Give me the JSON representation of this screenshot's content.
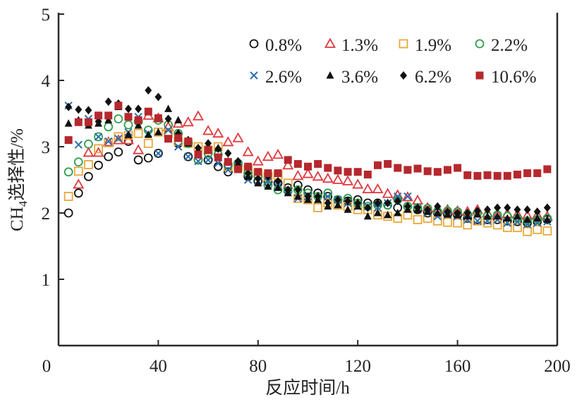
{
  "chart_data": {
    "type": "scatter",
    "xlabel": "反应时间/h",
    "ylabel_main": "CH",
    "ylabel_sub": "4",
    "ylabel_rest": "选择性/%",
    "xlim": [
      0,
      200
    ],
    "ylim": [
      0,
      5
    ],
    "xticks": [
      0,
      40,
      80,
      120,
      160,
      200
    ],
    "yticks": [
      1,
      2,
      3,
      4,
      5
    ],
    "x_tick_labels": [
      "0",
      "40",
      "80",
      "120",
      "160",
      "200"
    ],
    "y_tick_labels": [
      "1",
      "2",
      "3",
      "4",
      "5"
    ],
    "legend_placement": "top-right",
    "grid": false,
    "x": [
      4,
      8,
      12,
      16,
      20,
      24,
      28,
      32,
      36,
      40,
      44,
      48,
      52,
      56,
      60,
      64,
      68,
      72,
      76,
      80,
      84,
      88,
      92,
      96,
      100,
      104,
      108,
      112,
      116,
      120,
      124,
      128,
      132,
      136,
      140,
      144,
      148,
      152,
      156,
      160,
      164,
      168,
      172,
      176,
      180,
      184,
      188,
      192,
      196
    ],
    "series": [
      {
        "name": "0.8%",
        "marker": "circle-open",
        "color": "#111111",
        "values": [
          2.0,
          2.3,
          2.55,
          2.72,
          2.85,
          2.92,
          3.08,
          2.8,
          2.83,
          2.9,
          3.2,
          3.05,
          2.85,
          2.8,
          2.8,
          2.7,
          2.62,
          2.72,
          2.55,
          2.48,
          2.47,
          2.45,
          2.38,
          2.42,
          2.35,
          2.3,
          2.25,
          2.2,
          2.18,
          2.2,
          2.15,
          2.15,
          2.12,
          2.08,
          2.1,
          2.05,
          2.0,
          2.0,
          1.98,
          1.97,
          1.92,
          1.9,
          1.9,
          1.9,
          1.88,
          1.87,
          1.85,
          1.87,
          1.9
        ]
      },
      {
        "name": "1.3%",
        "marker": "triangle-open",
        "color": "#e03a3e",
        "values": [
          null,
          2.43,
          2.91,
          2.91,
          3.07,
          3.1,
          3.1,
          2.95,
          3.47,
          3.43,
          3.3,
          3.35,
          3.37,
          3.46,
          3.24,
          3.2,
          3.07,
          3.13,
          2.92,
          2.78,
          2.85,
          2.88,
          2.72,
          2.56,
          2.59,
          2.55,
          2.52,
          2.5,
          2.48,
          2.43,
          2.36,
          2.36,
          2.29,
          2.27,
          2.24,
          2.19,
          2.08,
          2.07,
          2.05,
          2.03,
          2.02,
          2.05,
          2.0,
          1.97,
          1.99,
          1.98,
          1.96,
          1.97,
          1.95
        ]
      },
      {
        "name": "1.9%",
        "marker": "square-open",
        "color": "#e8a838",
        "values": [
          2.25,
          2.63,
          2.73,
          2.97,
          3.06,
          3.15,
          3.17,
          3.2,
          3.05,
          3.22,
          3.2,
          3.08,
          3.05,
          3.0,
          2.95,
          3.0,
          2.7,
          2.7,
          2.65,
          2.6,
          2.55,
          2.57,
          2.45,
          2.22,
          2.2,
          2.08,
          2.15,
          2.12,
          2.1,
          2.05,
          2.05,
          1.97,
          1.95,
          1.92,
          1.97,
          1.9,
          1.92,
          1.88,
          1.86,
          1.85,
          1.82,
          1.88,
          1.85,
          1.82,
          1.78,
          1.78,
          1.72,
          1.75,
          1.73
        ]
      },
      {
        "name": "2.2%",
        "marker": "circle-open",
        "color": "#2e9e4a",
        "values": [
          2.62,
          2.77,
          3.04,
          3.15,
          3.3,
          3.42,
          3.33,
          3.38,
          3.25,
          3.4,
          3.33,
          3.2,
          3.05,
          2.8,
          2.9,
          2.88,
          2.72,
          2.75,
          2.6,
          2.55,
          2.42,
          2.35,
          2.33,
          2.35,
          2.3,
          2.25,
          2.3,
          2.2,
          2.22,
          2.15,
          2.1,
          2.12,
          2.12,
          2.2,
          2.1,
          2.08,
          2.07,
          2.02,
          2.03,
          2.02,
          1.98,
          2.0,
          1.95,
          1.97,
          1.95,
          1.92,
          1.88,
          1.9,
          1.92
        ]
      },
      {
        "name": "2.6%",
        "marker": "cross",
        "color": "#2a6fb0",
        "values": [
          3.62,
          3.03,
          3.42,
          3.15,
          3.08,
          3.12,
          3.22,
          3.45,
          3.2,
          2.9,
          3.25,
          3.0,
          2.85,
          2.78,
          2.8,
          2.75,
          2.65,
          2.72,
          2.5,
          2.48,
          2.48,
          2.4,
          2.35,
          2.22,
          2.25,
          2.2,
          2.25,
          2.2,
          2.15,
          2.1,
          2.1,
          2.08,
          2.15,
          2.25,
          2.25,
          2.05,
          2.0,
          1.95,
          1.97,
          1.95,
          1.9,
          1.88,
          1.88,
          1.9,
          1.85,
          1.87,
          1.83,
          1.85,
          1.87
        ]
      },
      {
        "name": "3.6%",
        "marker": "triangle-filled",
        "color": "#111111",
        "values": [
          3.35,
          3.4,
          3.32,
          3.35,
          3.4,
          3.6,
          3.18,
          3.32,
          3.18,
          3.22,
          3.57,
          3.4,
          3.05,
          2.95,
          3.0,
          2.98,
          2.78,
          2.75,
          2.55,
          2.45,
          2.4,
          2.38,
          2.3,
          2.25,
          2.2,
          2.2,
          2.1,
          2.12,
          2.05,
          2.1,
          1.95,
          2.0,
          1.97,
          2.0,
          2.05,
          2.05,
          2.02,
          2.0,
          1.98,
          1.97,
          1.95,
          1.98,
          1.95,
          1.95,
          1.92,
          1.95,
          1.9,
          1.92,
          1.9
        ]
      },
      {
        "name": "6.2%",
        "marker": "diamond-filled",
        "color": "#111111",
        "values": [
          3.6,
          3.56,
          3.55,
          3.38,
          3.68,
          3.65,
          3.57,
          3.57,
          3.85,
          3.75,
          3.42,
          3.2,
          3.1,
          2.98,
          3.05,
          2.97,
          2.9,
          2.78,
          2.6,
          2.52,
          2.55,
          2.48,
          2.35,
          2.35,
          2.25,
          2.25,
          2.15,
          2.2,
          2.18,
          2.15,
          2.08,
          2.15,
          2.15,
          2.18,
          2.1,
          2.08,
          2.05,
          2.1,
          2.02,
          2.0,
          2.0,
          2.03,
          2.05,
          2.08,
          2.08,
          2.05,
          2.05,
          2.02,
          2.08
        ]
      },
      {
        "name": "10.6%",
        "marker": "square-filled",
        "color": "#b5282e",
        "values": [
          3.1,
          3.37,
          3.37,
          3.47,
          3.47,
          3.62,
          3.45,
          3.4,
          3.53,
          3.43,
          3.12,
          3.13,
          3.08,
          2.88,
          2.95,
          2.84,
          2.77,
          2.66,
          2.7,
          2.62,
          2.6,
          2.6,
          2.8,
          2.74,
          2.7,
          2.74,
          2.68,
          2.64,
          2.62,
          2.62,
          2.58,
          2.72,
          2.74,
          2.68,
          2.65,
          2.67,
          2.63,
          2.62,
          2.65,
          2.68,
          2.57,
          2.56,
          2.57,
          2.56,
          2.56,
          2.58,
          2.6,
          2.6,
          2.66
        ]
      }
    ]
  }
}
